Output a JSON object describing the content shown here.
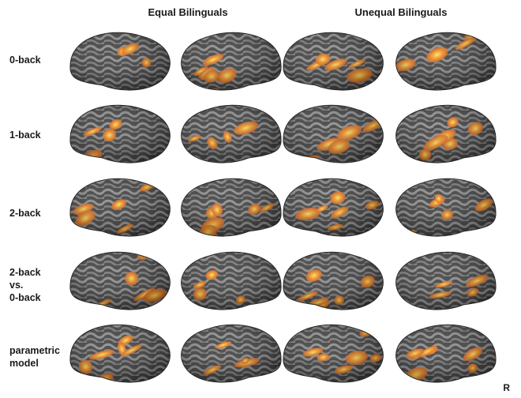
{
  "columns": {
    "equal": "Equal Bilinguals",
    "unequal": "Unequal Bilinguals"
  },
  "rows": [
    {
      "label": "0-back"
    },
    {
      "label": "1-back"
    },
    {
      "label": "2-back"
    },
    {
      "label": "2-back\nvs.\n0-back"
    },
    {
      "label": "parametric\nmodel"
    }
  ],
  "corner_label": "R",
  "colors": {
    "cortex_dark": "#3d3d3d",
    "cortex_light": "#8a8a8a",
    "activation_orange": "#e8761c",
    "activation_yellow": "#ffd84a"
  }
}
